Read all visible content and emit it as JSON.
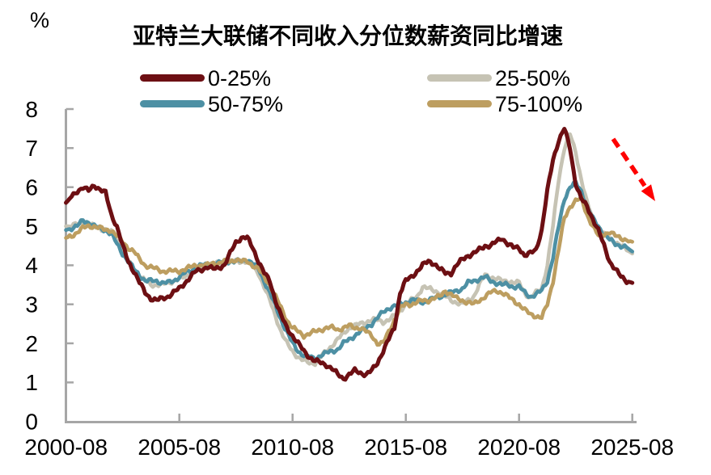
{
  "title": "亚特兰大联储不同收入分位数薪资同比增速",
  "y_axis_unit_label": "%",
  "colors": {
    "axis": "#a6a6a6",
    "text": "#000000",
    "arrow": "#fe0000",
    "series_0_25": "#6d0f13",
    "series_25_50": "#c6c3b4",
    "series_50_75": "#4d90a4",
    "series_75_100": "#bd9e60"
  },
  "legend": {
    "items": [
      {
        "label": "0-25%",
        "color": "#6d0f13"
      },
      {
        "label": "25-50%",
        "color": "#c6c3b4"
      },
      {
        "label": "50-75%",
        "color": "#4d90a4"
      },
      {
        "label": "75-100%",
        "color": "#bd9e60"
      }
    ]
  },
  "annotation_arrow": {
    "style": "dashed",
    "color": "#fe0000",
    "direction": "down-right"
  },
  "chart_data": {
    "type": "line",
    "title": "亚特兰大联储不同收入分位数薪资同比增速",
    "ylabel": "%",
    "ylim": [
      0,
      8
    ],
    "grid": false,
    "legend_position": "top",
    "x_start": "2000-08",
    "x_end": "2025-08",
    "x_step_months": 3,
    "x_tick_labels": [
      "2000-08",
      "2005-08",
      "2010-08",
      "2015-08",
      "2020-08",
      "2025-08"
    ],
    "y_tick_labels": [
      "0",
      "1",
      "2",
      "3",
      "4",
      "5",
      "6",
      "7",
      "8"
    ],
    "series": [
      {
        "name": "0-25%",
        "color": "#6d0f13",
        "values": [
          5.6,
          5.75,
          5.9,
          6.0,
          5.9,
          6.05,
          5.95,
          5.85,
          5.3,
          5.0,
          4.5,
          4.1,
          3.85,
          3.55,
          3.3,
          3.15,
          3.1,
          3.15,
          3.2,
          3.3,
          3.4,
          3.55,
          3.7,
          3.85,
          3.9,
          3.95,
          3.9,
          3.95,
          4.0,
          4.3,
          4.6,
          4.7,
          4.7,
          4.45,
          4.1,
          3.8,
          3.6,
          3.1,
          2.7,
          2.4,
          2.2,
          2.0,
          1.8,
          1.65,
          1.55,
          1.5,
          1.45,
          1.35,
          1.2,
          1.1,
          1.2,
          1.3,
          1.25,
          1.2,
          1.3,
          1.5,
          1.8,
          2.1,
          2.4,
          3.3,
          3.6,
          3.7,
          3.85,
          4.0,
          4.1,
          4.05,
          3.9,
          3.8,
          3.8,
          4.0,
          4.15,
          4.25,
          4.3,
          4.4,
          4.5,
          4.5,
          4.6,
          4.7,
          4.55,
          4.45,
          4.45,
          4.25,
          4.3,
          4.4,
          4.9,
          5.9,
          6.7,
          7.2,
          7.5,
          7.0,
          6.1,
          5.7,
          5.5,
          5.2,
          4.9,
          4.5,
          4.1,
          3.9,
          3.7,
          3.6,
          3.55
        ]
      },
      {
        "name": "25-50%",
        "color": "#c6c3b4",
        "values": [
          5.0,
          5.0,
          5.05,
          5.1,
          5.05,
          5.0,
          4.95,
          4.9,
          4.85,
          4.65,
          4.4,
          4.1,
          3.9,
          3.7,
          3.6,
          3.5,
          3.5,
          3.5,
          3.55,
          3.6,
          3.65,
          3.7,
          3.8,
          3.9,
          3.95,
          4.0,
          4.05,
          4.05,
          4.1,
          4.1,
          4.1,
          4.1,
          4.1,
          3.95,
          3.8,
          3.45,
          3.1,
          2.7,
          2.3,
          2.0,
          1.8,
          1.65,
          1.55,
          1.5,
          1.5,
          1.65,
          1.8,
          1.95,
          2.1,
          2.25,
          2.4,
          2.45,
          2.5,
          2.55,
          2.6,
          2.6,
          2.55,
          2.6,
          2.7,
          2.85,
          3.0,
          3.1,
          3.2,
          3.45,
          3.4,
          3.35,
          3.3,
          3.2,
          3.1,
          3.05,
          3.0,
          3.1,
          3.2,
          3.5,
          3.75,
          3.7,
          3.65,
          3.6,
          3.6,
          3.55,
          3.55,
          3.3,
          3.15,
          3.3,
          3.4,
          4.0,
          5.0,
          6.2,
          7.0,
          7.35,
          6.9,
          6.2,
          5.6,
          5.2,
          5.0,
          4.8,
          4.7,
          4.6,
          4.5,
          4.4,
          4.3
        ]
      },
      {
        "name": "50-75%",
        "color": "#4d90a4",
        "values": [
          4.9,
          4.95,
          5.0,
          5.15,
          5.1,
          5.0,
          4.95,
          4.9,
          4.8,
          4.55,
          4.3,
          4.1,
          3.9,
          3.75,
          3.6,
          3.6,
          3.6,
          3.55,
          3.55,
          3.6,
          3.7,
          3.8,
          3.85,
          3.95,
          4.0,
          4.0,
          4.05,
          4.05,
          4.1,
          4.1,
          4.1,
          4.1,
          4.15,
          4.05,
          3.9,
          3.6,
          3.3,
          2.95,
          2.6,
          2.3,
          2.0,
          1.8,
          1.7,
          1.65,
          1.6,
          1.7,
          1.75,
          1.8,
          1.85,
          2.0,
          2.1,
          2.2,
          2.3,
          2.4,
          2.5,
          2.65,
          2.8,
          2.9,
          2.95,
          3.0,
          3.05,
          3.1,
          3.1,
          3.05,
          3.1,
          3.15,
          3.2,
          3.25,
          3.3,
          3.35,
          3.4,
          3.55,
          3.6,
          3.65,
          3.7,
          3.6,
          3.55,
          3.5,
          3.5,
          3.45,
          3.45,
          3.3,
          3.2,
          3.25,
          3.35,
          3.6,
          4.2,
          5.0,
          5.7,
          6.0,
          6.1,
          5.9,
          5.5,
          5.2,
          5.0,
          4.8,
          4.65,
          4.55,
          4.5,
          4.45,
          4.35
        ]
      },
      {
        "name": "75-100%",
        "color": "#bd9e60",
        "values": [
          4.7,
          4.75,
          4.85,
          4.95,
          5.0,
          5.0,
          4.95,
          4.9,
          4.9,
          4.75,
          4.6,
          4.45,
          4.35,
          4.15,
          4.0,
          3.95,
          3.9,
          3.85,
          3.85,
          3.85,
          3.85,
          3.9,
          3.95,
          4.0,
          4.0,
          4.0,
          4.05,
          4.05,
          4.1,
          4.1,
          4.15,
          4.1,
          4.1,
          4.0,
          3.9,
          3.7,
          3.5,
          3.2,
          2.9,
          2.6,
          2.4,
          2.3,
          2.2,
          2.25,
          2.3,
          2.35,
          2.4,
          2.4,
          2.35,
          2.4,
          2.45,
          2.4,
          2.4,
          2.3,
          2.2,
          2.0,
          2.0,
          2.3,
          2.6,
          2.9,
          3.0,
          3.0,
          3.05,
          3.1,
          3.1,
          3.15,
          3.2,
          3.35,
          3.25,
          3.15,
          3.1,
          3.05,
          3.0,
          3.1,
          3.2,
          3.3,
          3.35,
          3.3,
          3.2,
          3.1,
          3.0,
          2.85,
          2.75,
          2.7,
          2.65,
          3.0,
          3.6,
          4.4,
          5.2,
          5.5,
          5.65,
          5.7,
          5.3,
          5.0,
          4.75,
          4.8,
          4.85,
          4.75,
          4.7,
          4.65,
          4.6
        ]
      }
    ]
  }
}
